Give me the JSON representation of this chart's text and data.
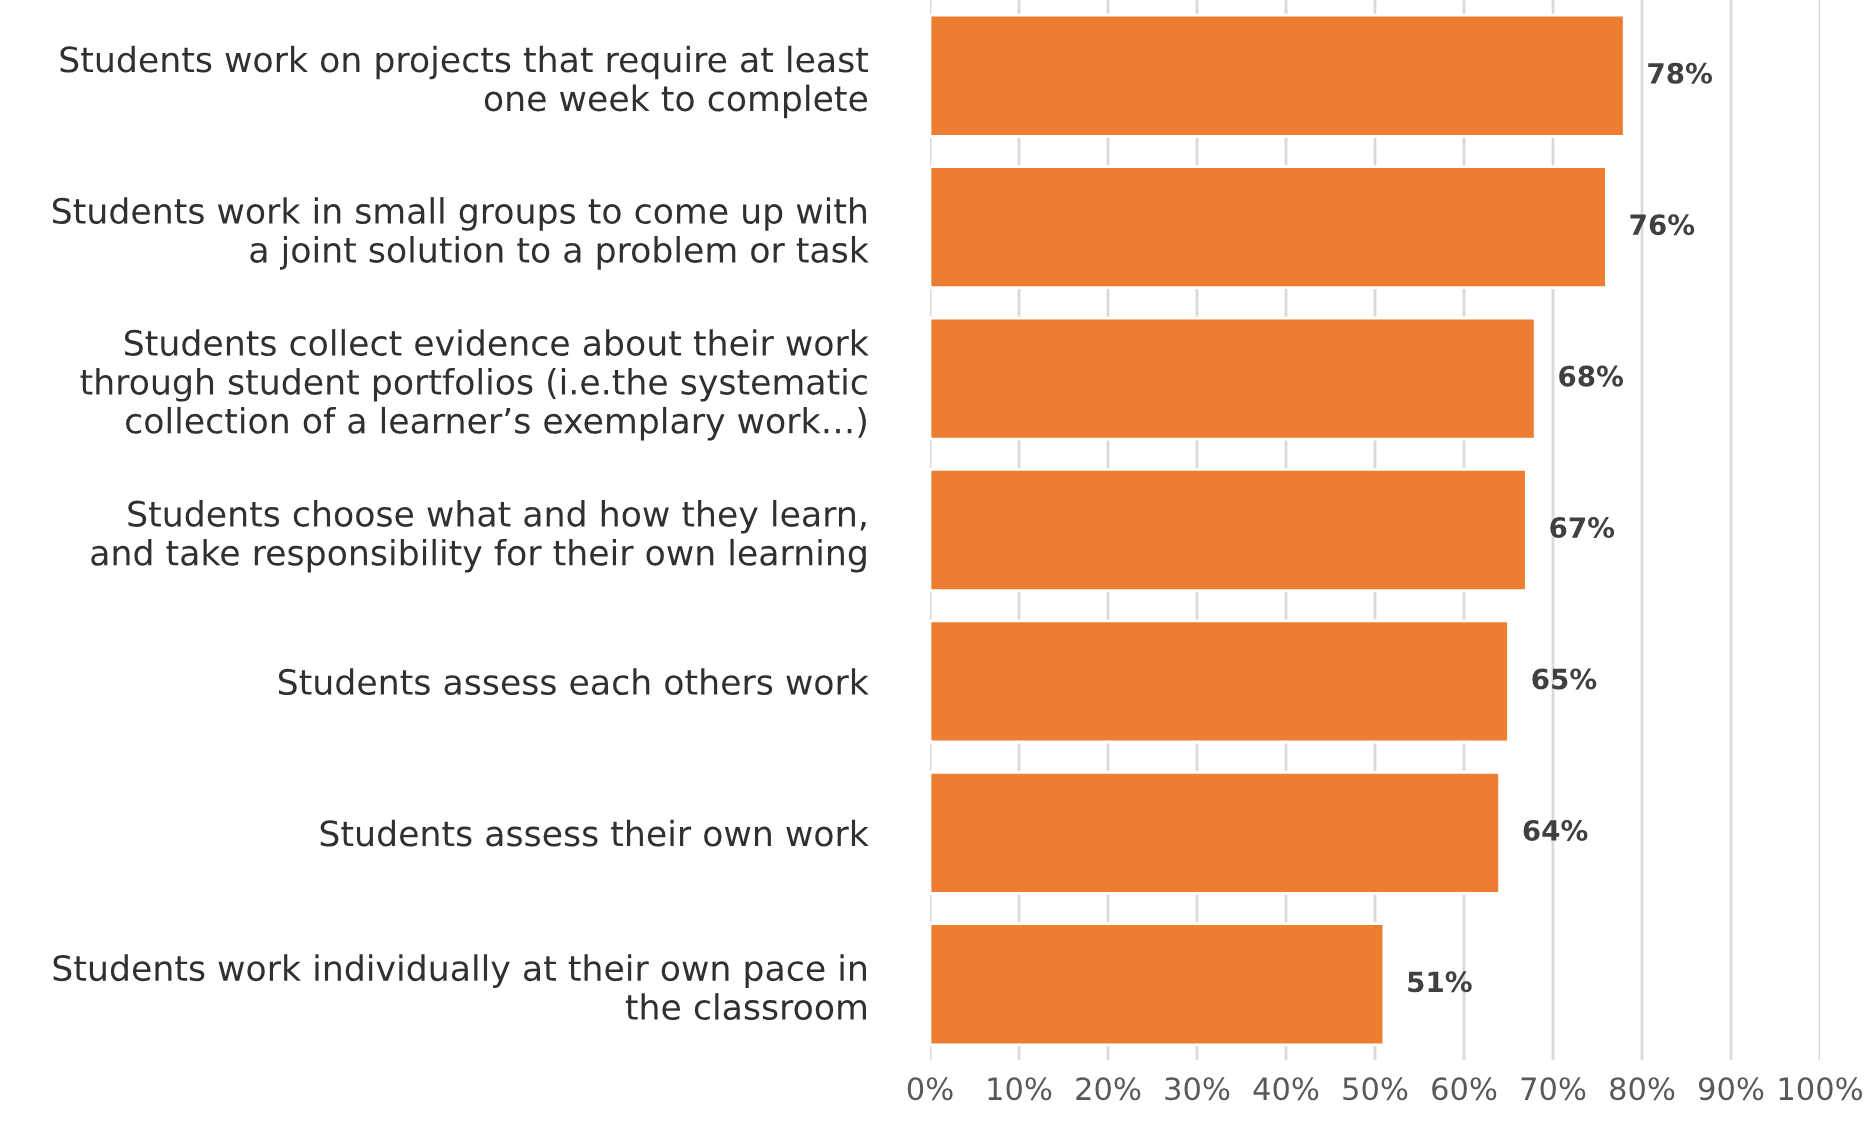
{
  "chart_data": {
    "type": "bar",
    "orientation": "horizontal",
    "categories": [
      "Students work on projects that require at least\none week to complete",
      "Students work in small groups to come up with\na joint solution to a problem or task",
      "Students collect evidence about their work\nthrough student portfolios (i.e.the systematic\ncollection of a learner’s exemplary work…)",
      "Students choose what and how they learn,\nand take responsibility for their own learning",
      "Students assess each others work",
      "Students assess their own work",
      "Students work individually at their own pace in\nthe classroom"
    ],
    "values": [
      78,
      76,
      68,
      67,
      65,
      64,
      51
    ],
    "value_labels": [
      "78%",
      "76%",
      "68%",
      "67%",
      "65%",
      "64%",
      "51%"
    ],
    "color": "#ed7d31",
    "xlim": [
      0,
      100
    ],
    "xticks": [
      {
        "value": 0,
        "label": "0%"
      },
      {
        "value": 10,
        "label": "10%"
      },
      {
        "value": 20,
        "label": "20%"
      },
      {
        "value": 30,
        "label": "30%"
      },
      {
        "value": 40,
        "label": "40%"
      },
      {
        "value": 50,
        "label": "50%"
      },
      {
        "value": 60,
        "label": "60%"
      },
      {
        "value": 70,
        "label": "70%"
      },
      {
        "value": 80,
        "label": "80%"
      },
      {
        "value": 90,
        "label": "90%"
      },
      {
        "value": 100,
        "label": "100%"
      }
    ],
    "grid": "x",
    "legend": false
  }
}
